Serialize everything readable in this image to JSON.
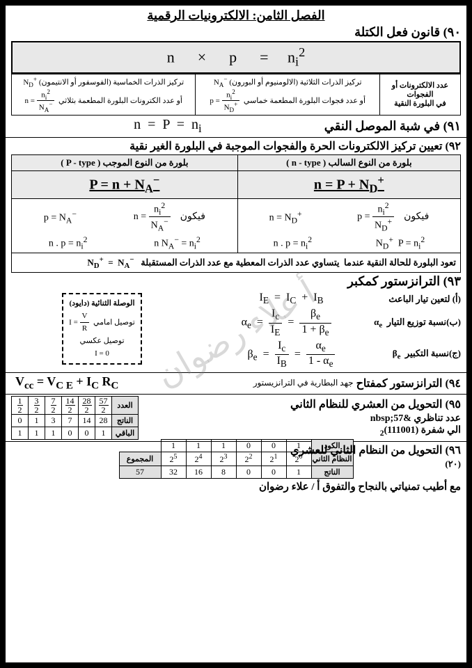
{
  "chapter": "الفصل الثامن: الالكترونيات الرقمية",
  "s90": {
    "title": "٩٠) قانون فعل الكتلة",
    "main_formula_html": "n &nbsp;&nbsp;&nbsp;&nbsp; × &nbsp;&nbsp;&nbsp;&nbsp; p &nbsp;&nbsp;&nbsp;&nbsp; = &nbsp;&nbsp;&nbsp; n<sub>i</sub><sup>2</sup>",
    "col1": "عدد الالكترونات أو الفجوات<br>في البلورة النقية",
    "col2_l1": "تركيز الذرات الثلاثية (الالومنيوم أو البورون) <span class='inline-eq'>N<sub>A</sub><sup>−</sup></span>",
    "col2_l2": "أو عدد فجوات البلورة المطعمة خماسي &nbsp;<span class='inline-eq'>p = <span class='frac'><span class='num'>n<sub>i</sub><sup>2</sup></span><span class='den'>N<sub>D</sub><sup>+</sup></span></span></span>",
    "col3_l1": "تركيز الذرات الخماسية (الفوسفور أو الانتيمون) <span class='inline-eq'>N<sub>D</sub><sup>+</sup></span>",
    "col3_l2": "أو عدد الكترونات البلورة المطعمة بثلاثي &nbsp;<span class='inline-eq'>n = <span class='frac'><span class='num'>n<sub>i</sub><sup>2</sup></span><span class='den'>N<sub>A</sub><sup>−</sup></span></span></span>"
  },
  "s91": {
    "title": "٩١) في شبة الموصل النقي",
    "eq": "n &nbsp;=&nbsp; P &nbsp;=&nbsp; n<sub>i</sub>"
  },
  "s92": {
    "title": "٩٢) تعيين تركيز الالكترونات الحرة والفجوات الموجبة في البلورة الغير نقية",
    "h_n": "بلورة من النوع السالب ( n - type )",
    "h_p": "بلورة من النوع الموجب ( P - type )",
    "eq_n": "n = P + N<sub>D</sub><sup>+</sup>",
    "eq_p": "P = n + N<sub>A</sub><sup>−</sup>",
    "r1_n_a": "فيكون &nbsp;&nbsp; <span class='inline-eq'>p = <span class='frac'><span class='num'>n<sub>i</sub><sup>2</sup></span><span class='den'>N<sub>D</sub><sup>+</sup></span></span></span>",
    "r1_n_b": "<span class='inline-eq'>n = N<sub>D</sub><sup>+</sup></span>",
    "r1_p_a": "فيكون &nbsp;&nbsp; <span class='inline-eq'>n = <span class='frac'><span class='num'>n<sub>i</sub><sup>2</sup></span><span class='den'>N<sub>A</sub><sup>−</sup></span></span></span>",
    "r1_p_b": "<span class='inline-eq'>p = N<sub>A</sub><sup>−</sup></span>",
    "r2_n_a": "N<sub>D</sub><sup>+</sup>&nbsp; P = n<sub>i</sub><sup>2</sup>",
    "r2_n_b": "n . p = n<sub>i</sub><sup>2</sup>",
    "r2_p_a": "n N<sub>A</sub><sup>−</sup> = n<sub>i</sub><sup>2</sup>",
    "r2_p_b": "n . p = n<sub>i</sub><sup>2</sup>",
    "returns": "تعود البلورة للحالة النقية عندما &nbsp;يتساوي عدد الذرات المعطية مع عدد الذرات المستقبلة &nbsp;&nbsp;<span class='inline-eq'>N<sub>D</sub><sup>+</sup> &nbsp;=&nbsp; N<sub>A</sub><sup>−</sup></span>"
  },
  "s93": {
    "title": "٩٣) الترانزستور كمكبر",
    "a_lbl": "(أ) لتعين تيار الباعث",
    "a_eq": "I<sub>E</sub> &nbsp;=&nbsp; I<sub>C</sub> &nbsp;+&nbsp; I<sub>B</sub>",
    "b_lbl": "(ب)نسبة توزيع التيار &nbsp;α<sub>e</sub>",
    "b_eq": "α<sub>e</sub> &nbsp;=&nbsp; <span class='frac'><span class='num'>I<sub>c</sub></span><span class='den'>I<sub>E</sub></span></span> &nbsp;=&nbsp; <span class='frac'><span class='num'>β<sub>e</sub></span><span class='den'>1 + β<sub>e</sub></span></span>",
    "c_lbl": "(ج)نسبة التكبير &nbsp;β<sub>e</sub>",
    "c_eq": "β<sub>e</sub> &nbsp;=&nbsp; <span class='frac'><span class='num'>I<sub>c</sub></span><span class='den'>I<sub>B</sub></span></span> &nbsp;=&nbsp; <span class='frac'><span class='num'>α<sub>e</sub></span><span class='den'>1 - α<sub>e</sub></span></span>",
    "diode_title": "الوصلة الثنائية (دايود)",
    "diode_fwd": "توصيل امامي &nbsp;<span class='inline-eq'>I = <span class='frac'><span class='num'>V</span><span class='den'>R</span></span></span>",
    "diode_rev": "توصيل عكسي",
    "diode_zero": "I = 0"
  },
  "s94": {
    "title": "٩٤) الترانزستور كمفتاح&nbsp;",
    "note": "جهد البطارية في الترانزيستور",
    "eq": "V<sub>cc</sub> = V<sub>C E</sub> + I<sub>C</sub> R<sub>C</sub>"
  },
  "s95": {
    "title": "٩٥) التحويل من العشري للنظام الثاني",
    "line1": "عدد تناظري &nbsp;57",
    "line2": "الي شفرة <span class='inline-eq'><sub>2</sub>(111001)</span>",
    "tbl": {
      "rlbls": [
        "العدد",
        "الناتج",
        "الباقي"
      ],
      "r0": [
        "57",
        "28",
        "14",
        "7",
        "3",
        "1"
      ],
      "divs": [
        "2",
        "2",
        "2",
        "2",
        "2",
        "2"
      ],
      "r1": [
        "28",
        "14",
        "7",
        "3",
        "1",
        "0"
      ],
      "r2": [
        "1",
        "0",
        "0",
        "1",
        "1",
        "1"
      ]
    }
  },
  "s96": {
    "title": "٩٦) التحويل من النظام الثاني للعشري",
    "tbl": {
      "rlbls": [
        "الكود",
        "النظام الثاني",
        "الناتج",
        "المجموع"
      ],
      "code": [
        "1",
        "1",
        "1",
        "0",
        "0",
        "1"
      ],
      "powers": [
        "2<sup>5</sup>",
        "2<sup>4</sup>",
        "2<sup>3</sup>",
        "2<sup>2</sup>",
        "2<sup>1</sup>",
        "2<sup>0</sup>"
      ],
      "result": [
        "32",
        "16",
        "8",
        "0",
        "0",
        "1"
      ],
      "sum": "57"
    }
  },
  "footer": "مع أطيب تمنياتي بالنجاح والتفوق أ / علاء رضوان",
  "pagenum": "(٢٠)",
  "watermark": "أ علاء رضوان"
}
